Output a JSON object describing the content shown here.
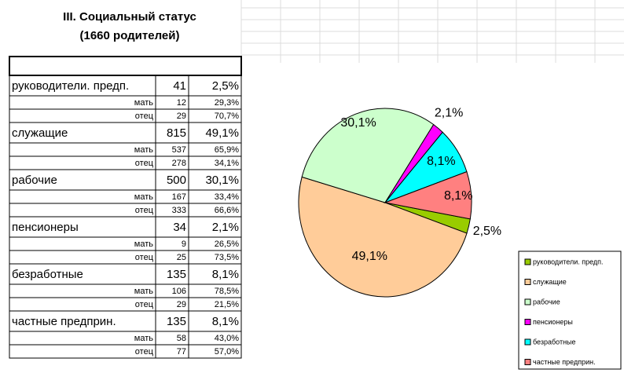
{
  "header": {
    "title": "III. Социальный статус",
    "subtitle": "(1660 родителей)"
  },
  "table": {
    "rows": [
      {
        "label": "руководители. предп.",
        "count": 41,
        "percent": "2,5%",
        "sub": [
          [
            "мать",
            12,
            "29,3%"
          ],
          [
            "отец",
            29,
            "70,7%"
          ]
        ]
      },
      {
        "label": "служащие",
        "count": 815,
        "percent": "49,1%",
        "sub": [
          [
            "мать",
            537,
            "65,9%"
          ],
          [
            "отец",
            278,
            "34,1%"
          ]
        ]
      },
      {
        "label": "рабочие",
        "count": 500,
        "percent": "30,1%",
        "sub": [
          [
            "мать",
            167,
            "33,4%"
          ],
          [
            "отец",
            333,
            "66,6%"
          ]
        ]
      },
      {
        "label": "пенсионеры",
        "count": 34,
        "percent": "2,1%",
        "sub": [
          [
            "мать",
            9,
            "26,5%"
          ],
          [
            "отец",
            25,
            "73,5%"
          ]
        ]
      },
      {
        "label": "безработные",
        "count": 135,
        "percent": "8,1%",
        "sub": [
          [
            "мать",
            106,
            "78,5%"
          ],
          [
            "отец",
            29,
            "21,5%"
          ]
        ]
      },
      {
        "label": "частные предприн.",
        "count": 135,
        "percent": "8,1%",
        "sub": [
          [
            "мать",
            58,
            "43,0%"
          ],
          [
            "отец",
            77,
            "57,0%"
          ]
        ]
      }
    ]
  },
  "chart_data": {
    "type": "pie",
    "categories": [
      "руководители. предп.",
      "служащие",
      "рабочие",
      "пенсионеры",
      "безработные",
      "частные предприн."
    ],
    "values": [
      2.5,
      49.1,
      30.1,
      2.1,
      8.1,
      8.1
    ],
    "value_labels": [
      "2,5%",
      "49,1%",
      "30,1%",
      "2,1%",
      "8,1%",
      "8,1%"
    ],
    "colors": [
      "#99cc00",
      "#ffcc99",
      "#ccffcc",
      "#ff00ff",
      "#00ffff",
      "#ff8080"
    ],
    "legend": "bottom-right"
  }
}
